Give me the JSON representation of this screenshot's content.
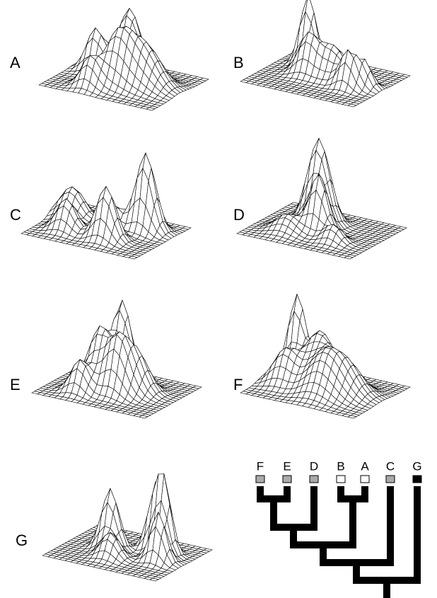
{
  "panels": [
    {
      "label": "A"
    },
    {
      "label": "B"
    },
    {
      "label": "C"
    },
    {
      "label": "D"
    },
    {
      "label": "E"
    },
    {
      "label": "F"
    },
    {
      "label": "G"
    }
  ],
  "tree": {
    "leaves": [
      {
        "label": "F",
        "color": "#aaaaaa"
      },
      {
        "label": "E",
        "color": "#aaaaaa"
      },
      {
        "label": "D",
        "color": "#aaaaaa"
      },
      {
        "label": "B",
        "color": "#ffffff"
      },
      {
        "label": "A",
        "color": "#ffffff"
      },
      {
        "label": "C",
        "color": "#aaaaaa"
      },
      {
        "label": "G",
        "color": "#000000"
      }
    ]
  }
}
